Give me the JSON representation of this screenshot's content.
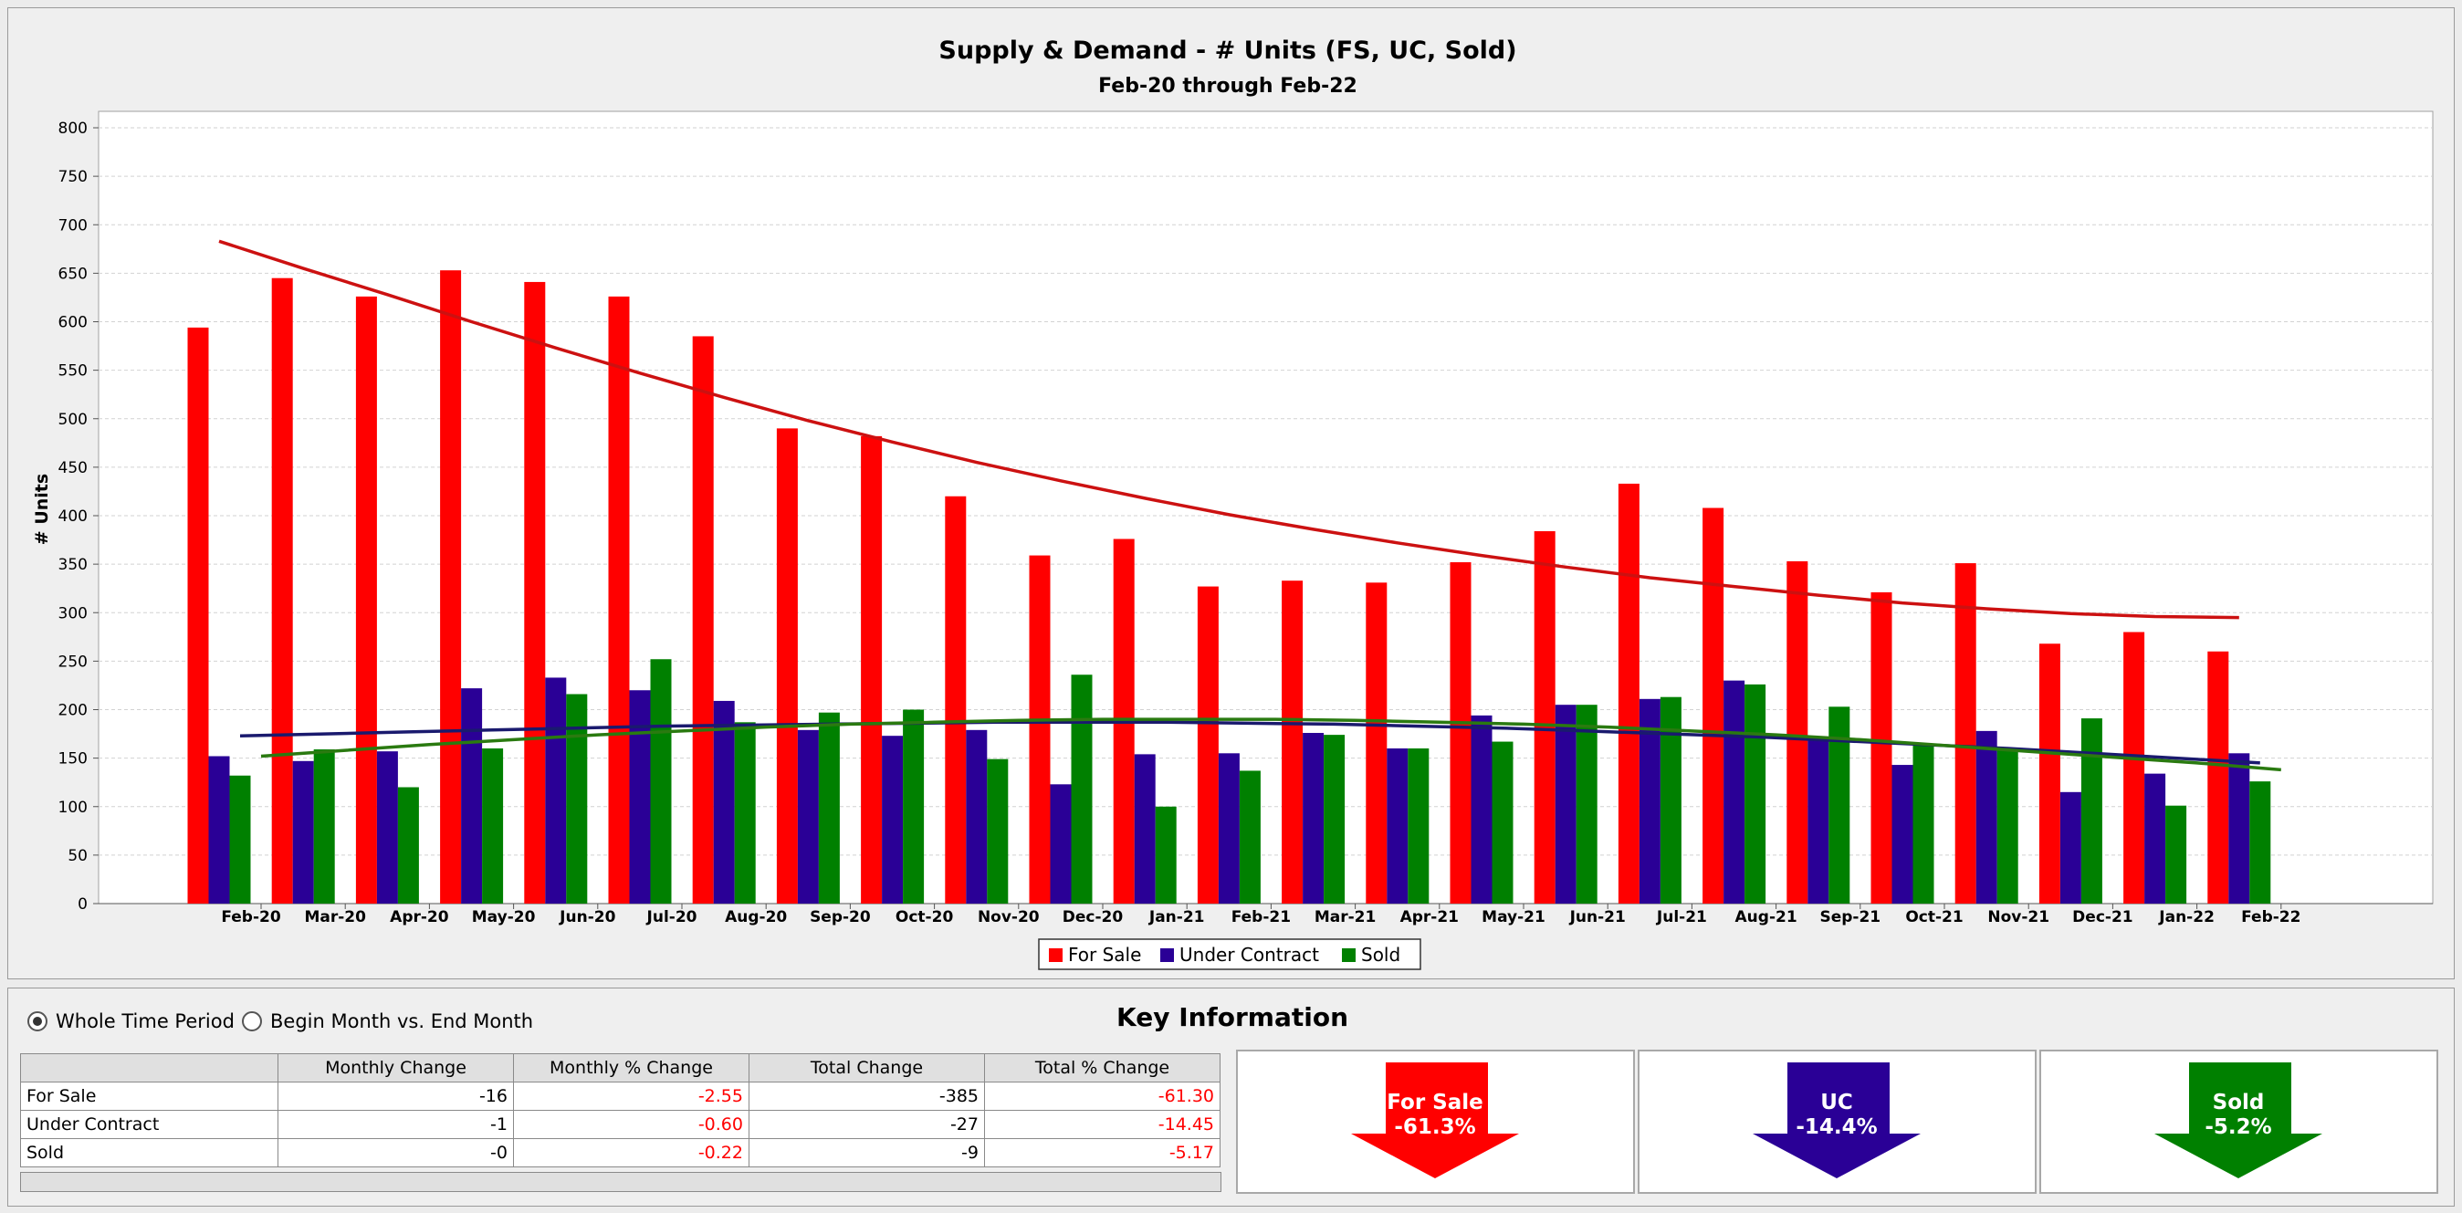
{
  "chart_data": {
    "type": "bar",
    "title": "Supply & Demand - # Units (FS, UC, Sold)",
    "subtitle": "Feb-20 through Feb-22",
    "ylabel": "# Units",
    "xlabel": "",
    "ylim": [
      0,
      800
    ],
    "yticks": [
      0,
      50,
      100,
      150,
      200,
      250,
      300,
      350,
      400,
      450,
      500,
      550,
      600,
      650,
      700,
      750,
      800
    ],
    "grid": true,
    "legend": "bottom",
    "categories": [
      "Feb-20",
      "Mar-20",
      "Apr-20",
      "May-20",
      "Jun-20",
      "Jul-20",
      "Aug-20",
      "Sep-20",
      "Oct-20",
      "Nov-20",
      "Dec-20",
      "Jan-21",
      "Feb-21",
      "Mar-21",
      "Apr-21",
      "May-21",
      "Jun-21",
      "Jul-21",
      "Aug-21",
      "Sep-21",
      "Oct-21",
      "Nov-21",
      "Dec-21",
      "Jan-22",
      "Feb-22"
    ],
    "series": [
      {
        "name": "For Sale",
        "color": "#ff0000",
        "values": [
          594,
          645,
          626,
          653,
          641,
          626,
          585,
          490,
          482,
          420,
          359,
          376,
          327,
          333,
          331,
          352,
          384,
          433,
          408,
          353,
          321,
          351,
          268,
          280,
          260
        ]
      },
      {
        "name": "Under Contract",
        "color": "#2a0096",
        "values": [
          152,
          147,
          157,
          222,
          233,
          220,
          209,
          179,
          173,
          179,
          123,
          154,
          155,
          176,
          160,
          194,
          205,
          211,
          230,
          170,
          143,
          178,
          115,
          134,
          155
        ]
      },
      {
        "name": "Sold",
        "color": "#008000",
        "values": [
          132,
          159,
          120,
          160,
          216,
          252,
          187,
          197,
          200,
          149,
          236,
          100,
          137,
          174,
          160,
          167,
          205,
          213,
          226,
          203,
          165,
          160,
          191,
          101,
          126
        ]
      }
    ],
    "trendlines": [
      {
        "series": "For Sale",
        "color": "#cc1111",
        "values": [
          683,
          655,
          628,
          600,
          573,
          547,
          522,
          498,
          476,
          455,
          436,
          418,
          401,
          386,
          372,
          359,
          347,
          336,
          327,
          318,
          310,
          304,
          299,
          296,
          295
        ]
      },
      {
        "series": "Under Contract",
        "color": "#1a1a6e",
        "values": [
          173,
          175,
          177,
          179,
          181,
          183,
          184,
          185,
          186,
          187,
          187,
          187,
          186,
          185,
          183,
          181,
          178,
          175,
          172,
          168,
          164,
          160,
          155,
          150,
          145
        ]
      },
      {
        "series": "Sold",
        "color": "#2a7a10",
        "values": [
          152,
          158,
          164,
          169,
          174,
          178,
          182,
          185,
          187,
          189,
          190,
          190,
          190,
          189,
          187,
          185,
          182,
          178,
          174,
          169,
          163,
          157,
          151,
          145,
          138
        ]
      }
    ]
  },
  "controls": {
    "whole_period": "Whole Time Period",
    "begin_vs_end": "Begin Month vs. End Month",
    "selected": "whole_period"
  },
  "key_info": {
    "title": "Key Information",
    "columns": [
      "",
      "Monthly Change",
      "Monthly % Change",
      "Total Change",
      "Total % Change"
    ],
    "rows": [
      {
        "label": "For Sale",
        "monthly_change": "-16",
        "monthly_pct": "-2.55",
        "total_change": "-385",
        "total_pct": "-61.30"
      },
      {
        "label": "Under Contract",
        "monthly_change": "-1",
        "monthly_pct": "-0.60",
        "total_change": "-27",
        "total_pct": "-14.45"
      },
      {
        "label": "Sold",
        "monthly_change": "-0",
        "monthly_pct": "-0.22",
        "total_change": "-9",
        "total_pct": "-5.17"
      }
    ],
    "cards": [
      {
        "label": "For Sale",
        "value": "-61.3%",
        "color": "#ff0000"
      },
      {
        "label": "UC",
        "value": "-14.4%",
        "color": "#2a0096"
      },
      {
        "label": "Sold",
        "value": "-5.2%",
        "color": "#008000"
      }
    ]
  }
}
